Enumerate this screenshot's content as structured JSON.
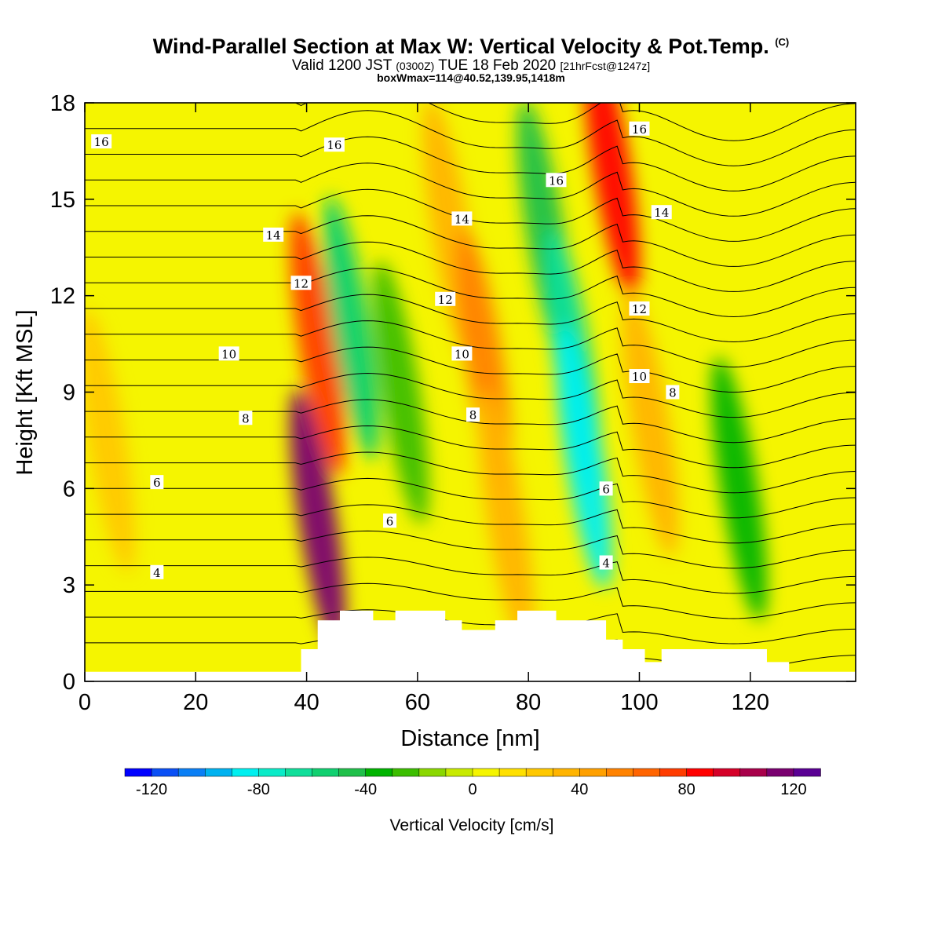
{
  "header": {
    "title": "Wind-Parallel Section at Max W: Vertical Velocity & Pot.Temp.",
    "title_mark": "(C)",
    "subtitle_a": "Valid 1200 JST",
    "subtitle_b": "(0300Z)",
    "subtitle_c": "TUE 18 Feb 2020",
    "subtitle_d": "[21hrFcst@1247z]",
    "subtitle2": "boxWmax=114@40.52,139.95,1418m"
  },
  "chart_data": {
    "type": "heatmap",
    "xlabel": "Distance [nm]",
    "ylabel": "Height [Kft MSL]",
    "xlim": [
      0,
      139
    ],
    "ylim": [
      0,
      18
    ],
    "x_ticks": [
      0,
      20,
      40,
      60,
      80,
      100,
      120
    ],
    "y_ticks": [
      0,
      3,
      6,
      9,
      12,
      15,
      18
    ],
    "colorbar": {
      "label": "Vertical Velocity [cm/s]",
      "min": -130,
      "max": 130,
      "step": 10,
      "tick_values": [
        -120,
        -80,
        -40,
        0,
        40,
        80,
        120
      ],
      "colors": [
        "#0000ff",
        "#0a4ff5",
        "#0a7ff5",
        "#00b2f0",
        "#00f0f0",
        "#0aebc8",
        "#10df9a",
        "#10d070",
        "#20c04a",
        "#00b400",
        "#3cbe00",
        "#8ad700",
        "#c8ea00",
        "#f5f500",
        "#ffe000",
        "#ffc800",
        "#ffb400",
        "#ffa000",
        "#ff8200",
        "#ff6400",
        "#ff3c00",
        "#ff0000",
        "#d50028",
        "#a8004a",
        "#7a0070",
        "#5a0094"
      ]
    },
    "vertical_velocity_bands": [
      {
        "x": 4,
        "z": 7.5,
        "w": 20
      },
      {
        "x": 42,
        "z": 5.0,
        "w": 114
      },
      {
        "x": 42,
        "z": 10.5,
        "w": 75
      },
      {
        "x": 48,
        "z": 11.0,
        "w": -55
      },
      {
        "x": 57,
        "z": 9.0,
        "w": -30
      },
      {
        "x": 66,
        "z": 14.0,
        "w": 35
      },
      {
        "x": 72,
        "z": 10.0,
        "w": 55
      },
      {
        "x": 76,
        "z": 5.0,
        "w": 30
      },
      {
        "x": 83,
        "z": 14.0,
        "w": -50
      },
      {
        "x": 88,
        "z": 10.0,
        "w": -70
      },
      {
        "x": 90,
        "z": 7.0,
        "w": -85
      },
      {
        "x": 95,
        "z": 16.0,
        "w": 80
      },
      {
        "x": 102,
        "z": 8.0,
        "w": 30
      },
      {
        "x": 118,
        "z": 6.0,
        "w": -40
      }
    ],
    "theta_contour_labels": [
      "4",
      "6",
      "8",
      "10",
      "12",
      "14",
      "16"
    ],
    "terrain_kft": [
      {
        "x": 39,
        "z": 1.0
      },
      {
        "x": 42,
        "z": 1.9
      },
      {
        "x": 46,
        "z": 2.2
      },
      {
        "x": 52,
        "z": 1.9
      },
      {
        "x": 56,
        "z": 2.2
      },
      {
        "x": 65,
        "z": 1.9
      },
      {
        "x": 68,
        "z": 1.6
      },
      {
        "x": 74,
        "z": 1.9
      },
      {
        "x": 78,
        "z": 2.2
      },
      {
        "x": 85,
        "z": 1.9
      },
      {
        "x": 94,
        "z": 1.3
      },
      {
        "x": 97,
        "z": 1.0
      },
      {
        "x": 101,
        "z": 0.6
      },
      {
        "x": 104,
        "z": 1.0
      },
      {
        "x": 123,
        "z": 0.6
      },
      {
        "x": 127,
        "z": 0.3
      }
    ]
  }
}
